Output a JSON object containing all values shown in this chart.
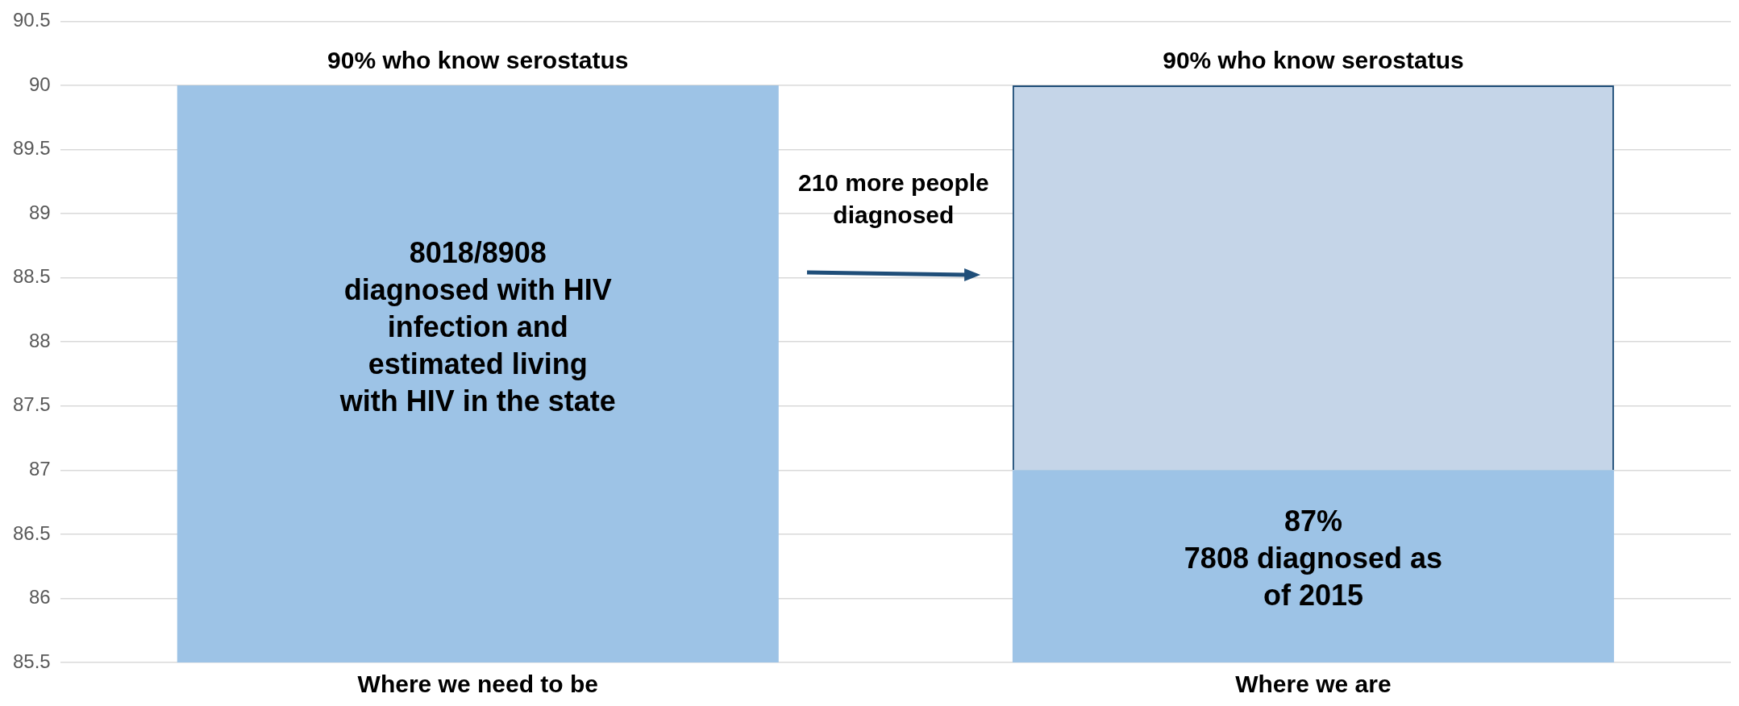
{
  "chart_data": {
    "type": "bar",
    "categories": [
      "Where we need to be",
      "Where we are"
    ],
    "series": [
      {
        "color": "#9dc3e6",
        "values": [
          90,
          87
        ]
      },
      {
        "color": "#c5d5e8",
        "values": [
          null,
          3
        ],
        "base": [
          null,
          87
        ]
      }
    ],
    "ylim": [
      85.5,
      90.5
    ],
    "yticks": [
      85.5,
      86,
      86.5,
      87,
      87.5,
      88,
      88.5,
      89,
      89.5,
      90,
      90.5
    ],
    "grid": "y",
    "legend": false,
    "annotations": [
      {
        "text": "90% who know serostatus",
        "x": "Where we need to be",
        "y": 90
      },
      {
        "text": "90% who know serostatus",
        "x": "Where we are",
        "y": 90
      },
      "8018/8908\ndiagnosed with HIV\ninfection and\nestimated living\nwith HIV in the state",
      "87%\n7808 diagnosed as\nof 2015",
      "210 more people\ndiagnosed"
    ]
  }
}
